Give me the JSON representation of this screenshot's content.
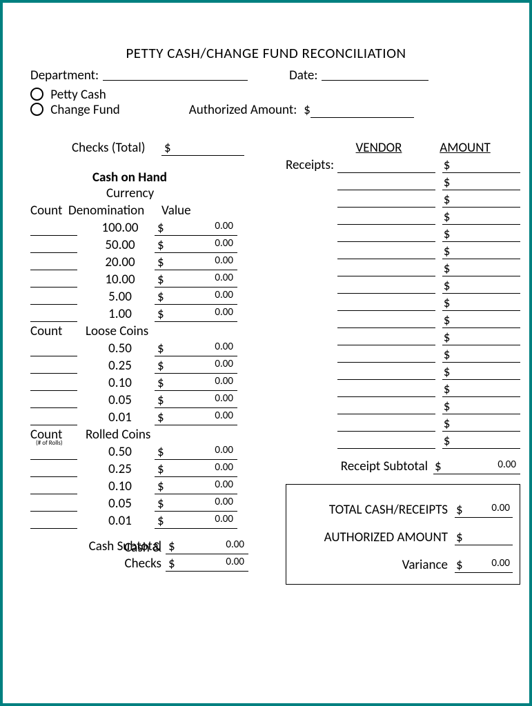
{
  "title": "PETTY CASH/CHANGE FUND RECONCILIATION",
  "header": {
    "dept_label": "Department:",
    "date_label": "Date:",
    "petty_cash_label": "Petty Cash",
    "change_fund_label": "Change Fund",
    "auth_amount_label": "Authorized Amount:",
    "auth_amount_prefix": "$"
  },
  "left": {
    "checks_total_label": "Checks (Total)",
    "cash_on_hand_label": "Cash on Hand",
    "currency_label": "Currency",
    "count_label": "Count",
    "denom_label": "Denomination",
    "value_label": "Value",
    "loose_coins_label": "Loose Coins",
    "rolled_coins_label": "Rolled Coins",
    "rolls_note": "(# of Rolls)",
    "cash_subtotal_label": "Cash Subtotal",
    "cash_checks_label": "Cash & Checks",
    "cash_subtotal_value": "0.00",
    "cash_checks_value": "0.00",
    "currency_denoms": [
      {
        "label": "100.00",
        "value": "0.00"
      },
      {
        "label": "50.00",
        "value": "0.00"
      },
      {
        "label": "20.00",
        "value": "0.00"
      },
      {
        "label": "10.00",
        "value": "0.00"
      },
      {
        "label": "5.00",
        "value": "0.00"
      },
      {
        "label": "1.00",
        "value": "0.00"
      }
    ],
    "loose_coins": [
      {
        "label": "0.50",
        "value": "0.00"
      },
      {
        "label": "0.25",
        "value": "0.00"
      },
      {
        "label": "0.10",
        "value": "0.00"
      },
      {
        "label": "0.05",
        "value": "0.00"
      },
      {
        "label": "0.01",
        "value": "0.00"
      }
    ],
    "rolled_coins": [
      {
        "label": "0.50",
        "value": "0.00"
      },
      {
        "label": "0.25",
        "value": "0.00"
      },
      {
        "label": "0.10",
        "value": "0.00"
      },
      {
        "label": "0.05",
        "value": "0.00"
      },
      {
        "label": "0.01",
        "value": "0.00"
      }
    ]
  },
  "right": {
    "vendor_label": "VENDOR",
    "amount_label": "AMOUNT",
    "receipts_label": "Receipts:",
    "receipt_rows": 17,
    "receipt_subtotal_label": "Receipt Subtotal",
    "receipt_subtotal_value": "0.00"
  },
  "totals": {
    "total_cash_receipts_label": "TOTAL CASH/RECEIPTS",
    "total_cash_receipts_value": "0.00",
    "authorized_amount_label": "AUTHORIZED AMOUNT",
    "variance_label": "Variance",
    "variance_value": "0.00"
  },
  "dollar": "$"
}
